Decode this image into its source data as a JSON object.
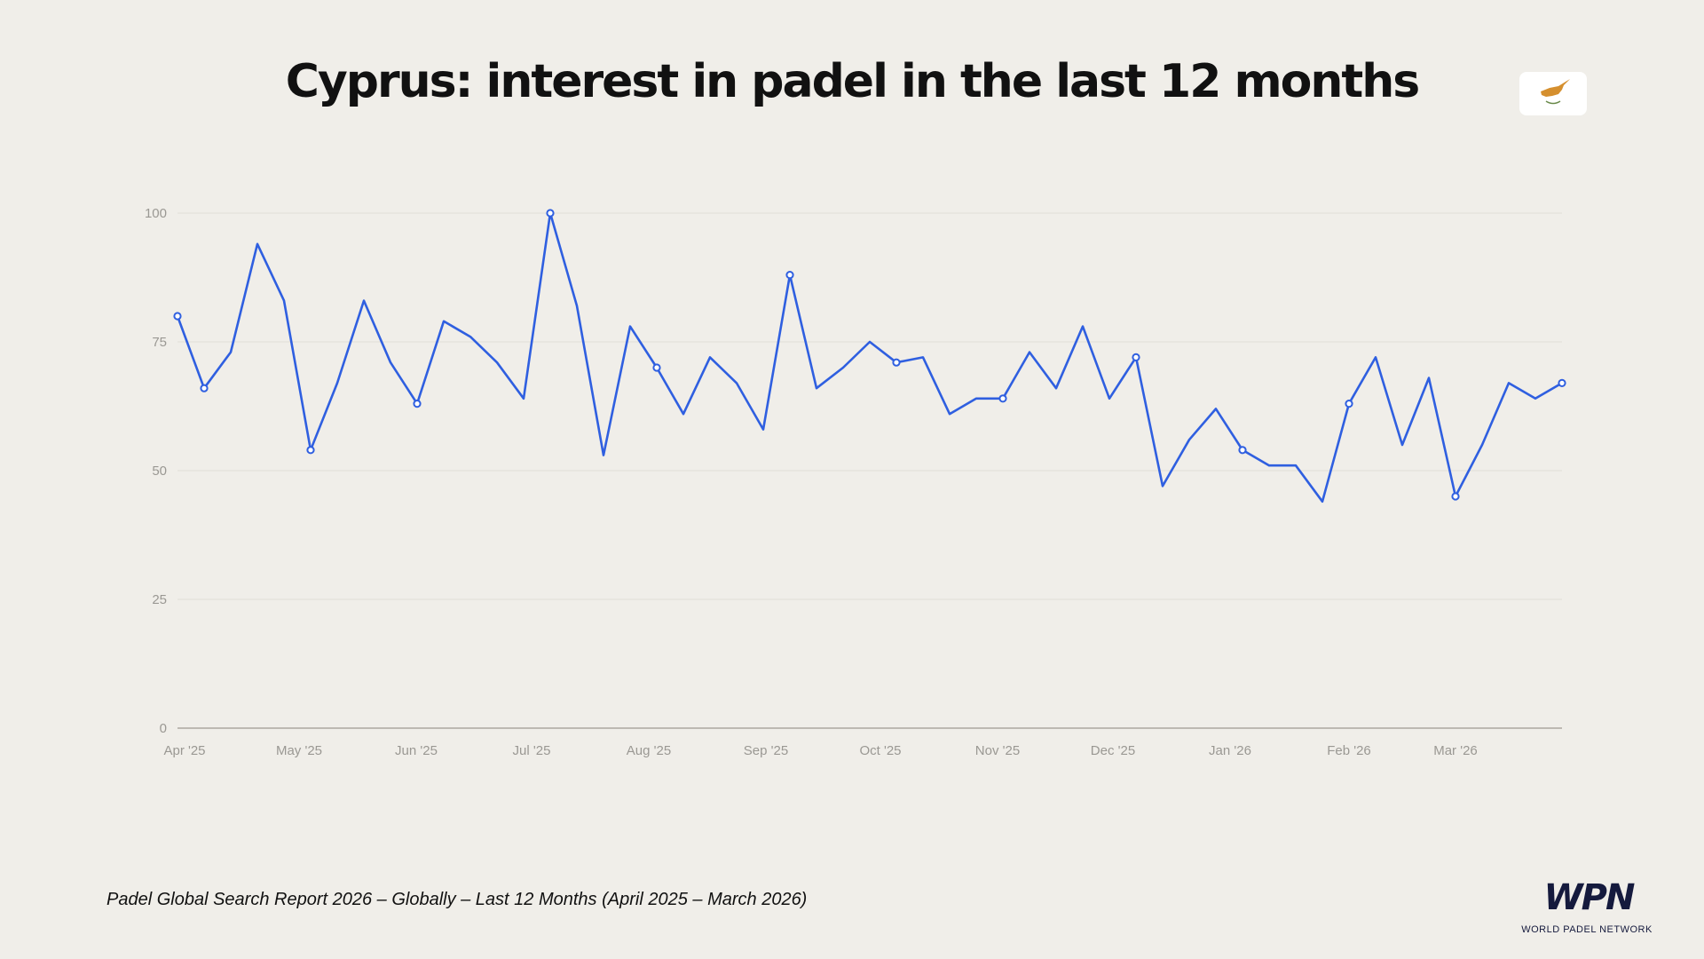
{
  "title": "Cyprus: interest in padel in the last 12 months",
  "flag_icon": "cyprus-flag-icon",
  "footer": "Padel Global Search Report 2026 – Globally – Last 12 Months (April 2025 – March 2026)",
  "logo": {
    "text": "WPN",
    "subtitle": "WORLD PADEL NETWORK"
  },
  "colors": {
    "line": "#2f5fe0",
    "grid": "#e4e1db",
    "axis": "#bdb9b2",
    "background": "#f0eee9"
  },
  "chart_data": {
    "type": "line",
    "title": "Cyprus: interest in padel in the last 12 months",
    "xlabel": "",
    "ylabel": "",
    "ylim": [
      0,
      100
    ],
    "yticks": [
      0,
      25,
      50,
      75,
      100
    ],
    "grid": true,
    "xtick_labels": [
      "Apr '25",
      "May '25",
      "Jun '25",
      "Jul '25",
      "Aug '25",
      "Sep '25",
      "Oct '25",
      "Nov '25",
      "Dec '25",
      "Jan '26",
      "Feb '26",
      "Mar '26"
    ],
    "series": [
      {
        "values": [
          80,
          66,
          73,
          94,
          83,
          54,
          67,
          83,
          71,
          63,
          79,
          76,
          71,
          64,
          100,
          82,
          53,
          78,
          70,
          61,
          72,
          67,
          58,
          88,
          66,
          70,
          75,
          71,
          72,
          61,
          64,
          64,
          73,
          66,
          78,
          64,
          72,
          47,
          56,
          62,
          54,
          51,
          51,
          44,
          63,
          72,
          55,
          68,
          45,
          55,
          67,
          64,
          67
        ],
        "markers_at": [
          0,
          1,
          5,
          9,
          14,
          18,
          23,
          27,
          31,
          36,
          40,
          44,
          48,
          52
        ]
      }
    ]
  }
}
